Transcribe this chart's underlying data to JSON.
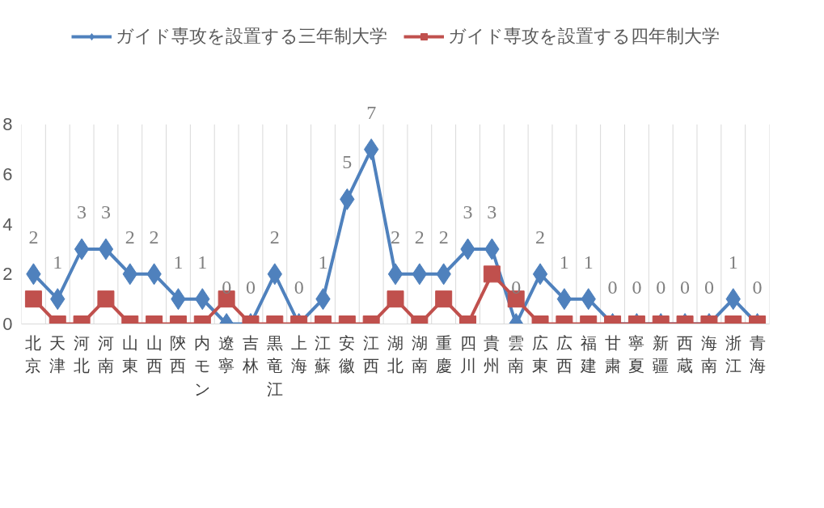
{
  "chart_data": {
    "type": "line",
    "categories": [
      "北京",
      "天津",
      "河北",
      "河南",
      "山東",
      "山西",
      "陝西",
      "内モン",
      "遼寧",
      "吉林",
      "黒竜江",
      "上海",
      "江蘇",
      "安徽",
      "江西",
      "湖北",
      "湖南",
      "重慶",
      "四川",
      "貴州",
      "雲南",
      "広東",
      "広西",
      "福建",
      "甘粛",
      "寧夏",
      "新疆",
      "西蔵",
      "海南",
      "浙江",
      "青海"
    ],
    "series": [
      {
        "name": "ガイド専攻を設置する三年制大学",
        "color": "#4f81bd",
        "marker": "diamond",
        "data_labels": true,
        "values": [
          2,
          1,
          3,
          3,
          2,
          2,
          1,
          1,
          0,
          0,
          2,
          0,
          1,
          5,
          7,
          2,
          2,
          2,
          3,
          3,
          0,
          2,
          1,
          1,
          0,
          0,
          0,
          0,
          0,
          1,
          0
        ]
      },
      {
        "name": "ガイド専攻を設置する四年制大学",
        "color": "#c0504d",
        "marker": "square",
        "values": [
          1,
          0,
          0,
          1,
          0,
          0,
          0,
          0,
          1,
          0,
          0,
          0,
          0,
          0,
          0,
          1,
          0,
          1,
          0,
          2,
          1,
          0,
          0,
          0,
          0,
          0,
          0,
          0,
          0,
          0,
          0
        ]
      }
    ],
    "ylim": [
      0,
      8
    ],
    "yticks": [
      0,
      2,
      4,
      6,
      8
    ],
    "grid": "x",
    "legend": "top"
  }
}
